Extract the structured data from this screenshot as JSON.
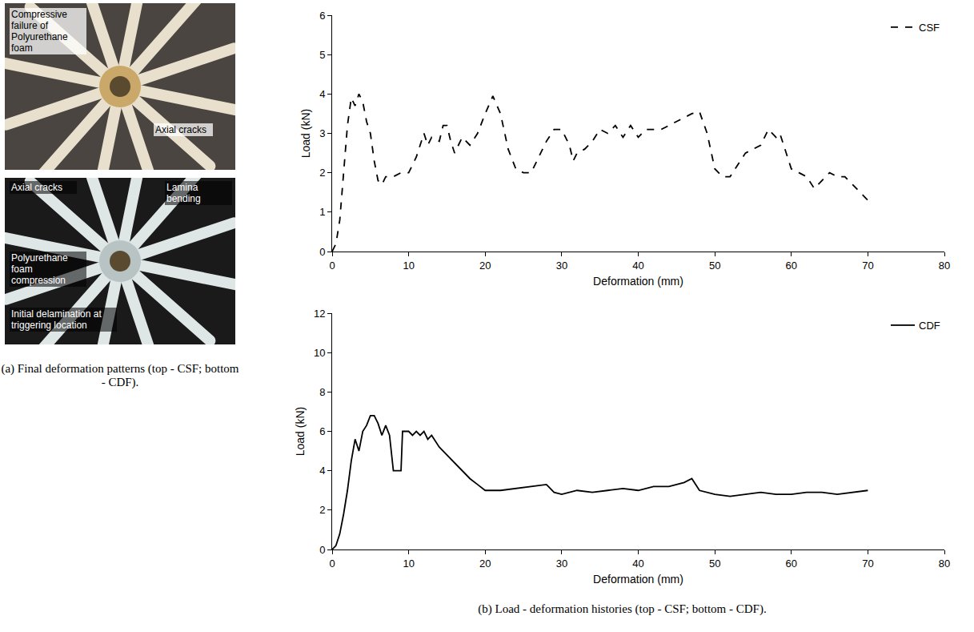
{
  "chart_data": [
    {
      "type": "line",
      "x_label": "Deformation (mm)",
      "y_label": "Load (kN)",
      "xlim": [
        0,
        80
      ],
      "xticks": [
        0,
        10,
        20,
        30,
        40,
        50,
        60,
        70,
        80
      ],
      "ylim": [
        0,
        6
      ],
      "yticks": [
        0,
        1,
        2,
        3,
        4,
        5,
        6
      ],
      "grid": false,
      "legend": "top right",
      "x": [
        0,
        0.5,
        1,
        1.5,
        2,
        2.5,
        3,
        3.5,
        4,
        4.5,
        5,
        5.5,
        6,
        6.5,
        7,
        8,
        9,
        10,
        10.5,
        11,
        12,
        12.5,
        13,
        14,
        14.5,
        15,
        15.5,
        16,
        17,
        17.5,
        18,
        19,
        20,
        21,
        22,
        23,
        24,
        25,
        26,
        27,
        28,
        29,
        30,
        31,
        31.5,
        32,
        33,
        34,
        35,
        36,
        37,
        38,
        39,
        40,
        41,
        42,
        43,
        44,
        45,
        46,
        47,
        48,
        49,
        50,
        51,
        52,
        53,
        54,
        55,
        56,
        57,
        58,
        58.5,
        59,
        60,
        61,
        62,
        63,
        64,
        65,
        66,
        67,
        68,
        69,
        70
      ],
      "series": [
        {
          "name": "CSF",
          "color": "#000000",
          "line_style": "dash",
          "values": [
            0,
            0.2,
            0.8,
            2,
            3.2,
            3.9,
            3.7,
            4.0,
            3.8,
            3.3,
            3.0,
            2.3,
            1.8,
            1.7,
            1.9,
            1.9,
            2.0,
            2.0,
            2.2,
            2.4,
            3.0,
            2.7,
            2.9,
            2.8,
            3.2,
            3.2,
            2.8,
            2.5,
            2.9,
            2.8,
            2.7,
            3.0,
            3.5,
            3.95,
            3.5,
            2.6,
            2.1,
            2.0,
            2.0,
            2.4,
            2.8,
            3.1,
            3.1,
            2.7,
            2.3,
            2.5,
            2.6,
            2.8,
            3.1,
            3.0,
            3.2,
            2.9,
            3.2,
            2.9,
            3.1,
            3.1,
            3.1,
            3.2,
            3.3,
            3.4,
            3.5,
            3.55,
            3.0,
            2.1,
            1.9,
            1.9,
            2.2,
            2.5,
            2.6,
            2.7,
            3.1,
            2.9,
            3.0,
            2.7,
            2.1,
            2.0,
            1.9,
            1.6,
            1.8,
            2.0,
            1.9,
            1.9,
            1.7,
            1.5,
            1.3
          ]
        }
      ]
    },
    {
      "type": "line",
      "x_label": "Deformation (mm)",
      "y_label": "Load (kN)",
      "xlim": [
        0,
        80
      ],
      "xticks": [
        0,
        10,
        20,
        30,
        40,
        50,
        60,
        70,
        80
      ],
      "ylim": [
        0,
        12
      ],
      "yticks": [
        0,
        2,
        4,
        6,
        8,
        10,
        12
      ],
      "grid": false,
      "legend": "top right",
      "x": [
        0,
        0.5,
        1,
        1.5,
        2,
        2.5,
        3,
        3.5,
        4,
        4.5,
        5,
        5.5,
        6,
        6.5,
        7,
        7.5,
        8,
        8.5,
        9,
        9.2,
        10,
        10.5,
        11,
        11.5,
        12,
        12.5,
        13,
        14,
        15,
        16,
        17,
        18,
        19,
        20,
        22,
        24,
        26,
        28,
        29,
        30,
        32,
        34,
        36,
        38,
        40,
        42,
        44,
        46,
        47,
        48,
        50,
        52,
        54,
        56,
        58,
        60,
        62,
        64,
        66,
        68,
        70
      ],
      "series": [
        {
          "name": "CDF",
          "color": "#000000",
          "line_style": "solid",
          "values": [
            0,
            0.2,
            0.8,
            1.8,
            3,
            4.5,
            5.6,
            5.0,
            6.0,
            6.3,
            6.8,
            6.8,
            6.4,
            5.8,
            6.3,
            5.8,
            4.0,
            4.0,
            4.0,
            6.0,
            6.0,
            5.8,
            6.0,
            5.8,
            6.0,
            5.6,
            5.8,
            5.2,
            4.8,
            4.4,
            4.0,
            3.6,
            3.3,
            3.0,
            3.0,
            3.1,
            3.2,
            3.3,
            2.9,
            2.8,
            3.0,
            2.9,
            3.0,
            3.1,
            3.0,
            3.2,
            3.2,
            3.4,
            3.6,
            3.0,
            2.8,
            2.7,
            2.8,
            2.9,
            2.8,
            2.8,
            2.9,
            2.9,
            2.8,
            2.9,
            3.0
          ]
        }
      ]
    }
  ],
  "photos": [
    {
      "labels": [
        "Compressive failure of Polyurethane foam",
        "Axial cracks"
      ]
    },
    {
      "labels": [
        "Axial cracks",
        "Lamina bending",
        "Polyurethane foam compression",
        "Initial delamination at triggering location"
      ]
    }
  ],
  "captions": [
    "(a) Final deformation patterns (top - CSF; bottom - CDF).",
    "(b) Load - deformation histories (top - CSF; bottom - CDF)."
  ]
}
